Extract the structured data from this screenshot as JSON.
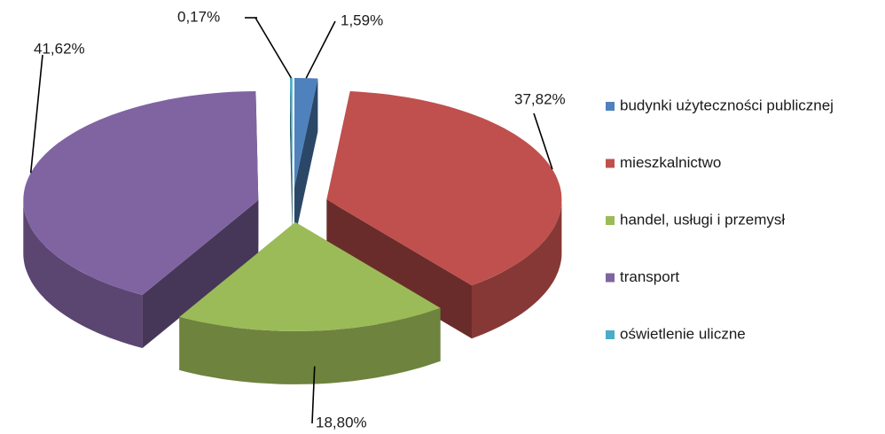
{
  "chart_data": {
    "type": "pie",
    "categories": [
      "budynki użyteczności publicznej",
      "mieszkalnictwo",
      "handel, usługi i przemysł",
      "transport",
      "oświetlenie uliczne"
    ],
    "values": [
      1.59,
      37.82,
      18.8,
      41.62,
      0.17
    ],
    "value_labels": [
      "1,59%",
      "37,82%",
      "18,80%",
      "41,62%",
      "0,17%"
    ],
    "colors": [
      "#4f81bd",
      "#c0504d",
      "#9bbb59",
      "#8064a2",
      "#4bacc6"
    ],
    "legend": "right"
  }
}
